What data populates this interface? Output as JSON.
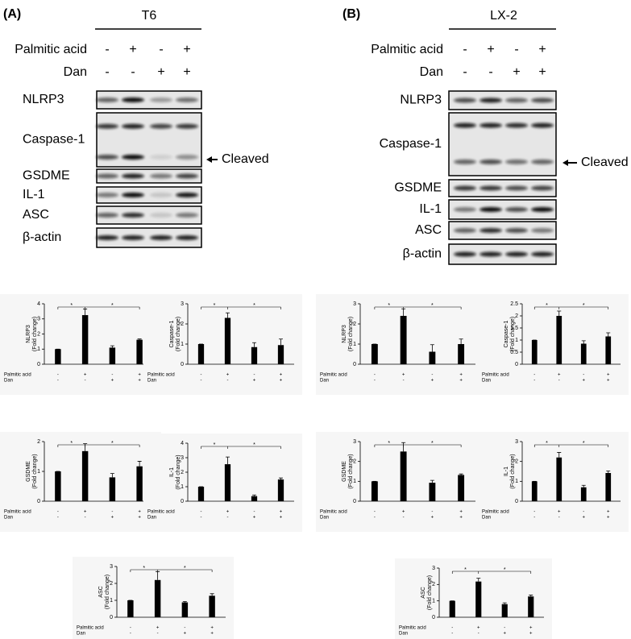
{
  "panels": [
    {
      "label": "(A)",
      "cell_line": "T6",
      "treatments": [
        {
          "name": "Palmitic acid",
          "signs": [
            "-",
            "+",
            "-",
            "+"
          ]
        },
        {
          "name": "Dan",
          "signs": [
            "-",
            "-",
            "+",
            "+"
          ]
        }
      ],
      "blots": [
        "NLRP3",
        "Caspase-1",
        "GSDME",
        "IL-1",
        "ASC",
        "β-actin"
      ],
      "arrow_label": "Cleaved"
    },
    {
      "label": "(B)",
      "cell_line": "LX-2",
      "treatments": [
        {
          "name": "Palmitic acid",
          "signs": [
            "-",
            "+",
            "-",
            "+"
          ]
        },
        {
          "name": "Dan",
          "signs": [
            "-",
            "-",
            "+",
            "+"
          ]
        }
      ],
      "blots": [
        "NLRP3",
        "Caspase-1",
        "GSDME",
        "IL-1",
        "ASC",
        "β-actin"
      ],
      "arrow_label": "Cleaved"
    }
  ],
  "chart_data": [
    {
      "type": "bar",
      "ylabel": "NLRP3",
      "ylabel_unit": "(Fold change)",
      "values": [
        1,
        3.25,
        1.1,
        1.62
      ],
      "errors": [
        0,
        0.4,
        0.12,
        0.05
      ],
      "ylim": [
        0,
        4
      ],
      "yticks": [
        0,
        1,
        2,
        3,
        4
      ],
      "color": "#000000",
      "treatments": [
        {
          "name": "Palmitic acid",
          "signs": [
            "-",
            "+",
            "-",
            "+"
          ]
        },
        {
          "name": "Dan",
          "signs": [
            "-",
            "-",
            "+",
            "+"
          ]
        }
      ],
      "significance": [
        {
          "from": 0,
          "to": 1,
          "label": "*"
        },
        {
          "from": 1,
          "to": 3,
          "label": "*"
        }
      ]
    },
    {
      "type": "bar",
      "ylabel": "Caspase-1",
      "ylabel_unit": "(Fold change)",
      "values": [
        1,
        2.3,
        0.85,
        0.95
      ],
      "errors": [
        0,
        0.25,
        0.22,
        0.3
      ],
      "ylim": [
        0,
        3
      ],
      "yticks": [
        0,
        1,
        2,
        3
      ],
      "color": "#000000",
      "treatments": [
        {
          "name": "Palmitic acid",
          "signs": [
            "-",
            "+",
            "-",
            "+"
          ]
        },
        {
          "name": "Dan",
          "signs": [
            "-",
            "-",
            "+",
            "+"
          ]
        }
      ],
      "significance": [
        {
          "from": 0,
          "to": 1,
          "label": "*"
        },
        {
          "from": 1,
          "to": 3,
          "label": "*"
        }
      ]
    },
    {
      "type": "bar",
      "ylabel": "GSDME",
      "ylabel_unit": "(Fold change)",
      "values": [
        1,
        1.68,
        0.8,
        1.17
      ],
      "errors": [
        0,
        0.25,
        0.13,
        0.17
      ],
      "ylim": [
        0,
        2
      ],
      "yticks": [
        0,
        1,
        2
      ],
      "color": "#000000",
      "treatments": [
        {
          "name": "Palmitic acid",
          "signs": [
            "-",
            "+",
            "-",
            "+"
          ]
        },
        {
          "name": "Dan",
          "signs": [
            "-",
            "-",
            "+",
            "+"
          ]
        }
      ],
      "significance": [
        {
          "from": 0,
          "to": 1,
          "label": "*"
        },
        {
          "from": 1,
          "to": 3,
          "label": "*"
        }
      ]
    },
    {
      "type": "bar",
      "ylabel": "IL-1",
      "ylabel_unit": "(Fold change)",
      "values": [
        1,
        2.55,
        0.35,
        1.5
      ],
      "errors": [
        0,
        0.5,
        0.08,
        0.1
      ],
      "ylim": [
        0,
        4
      ],
      "yticks": [
        0,
        1,
        2,
        3,
        4
      ],
      "color": "#000000",
      "treatments": [
        {
          "name": "Palmitic acid",
          "signs": [
            "-",
            "+",
            "-",
            "+"
          ]
        },
        {
          "name": "Dan",
          "signs": [
            "-",
            "-",
            "+",
            "+"
          ]
        }
      ],
      "significance": [
        {
          "from": 0,
          "to": 1,
          "label": "*"
        },
        {
          "from": 1,
          "to": 3,
          "label": "*"
        }
      ]
    },
    {
      "type": "bar",
      "ylabel": "ASC",
      "ylabel_unit": "(Fold change)",
      "values": [
        1,
        2.2,
        0.88,
        1.27
      ],
      "errors": [
        0,
        0.5,
        0.05,
        0.12
      ],
      "ylim": [
        0,
        3
      ],
      "yticks": [
        0,
        1,
        2,
        3
      ],
      "color": "#000000",
      "treatments": [
        {
          "name": "Palmitic acid",
          "signs": [
            "-",
            "+",
            "-",
            "+"
          ]
        },
        {
          "name": "Dan",
          "signs": [
            "-",
            "-",
            "+",
            "+"
          ]
        }
      ],
      "significance": [
        {
          "from": 0,
          "to": 1,
          "label": "*"
        },
        {
          "from": 1,
          "to": 3,
          "label": "*"
        }
      ]
    },
    {
      "type": "bar",
      "ylabel": "NLRP3",
      "ylabel_unit": "(Fold change)",
      "values": [
        1,
        2.4,
        0.62,
        1
      ],
      "errors": [
        0,
        0.35,
        0.35,
        0.25
      ],
      "ylim": [
        0,
        3
      ],
      "yticks": [
        0,
        1,
        2,
        3
      ],
      "color": "#000000",
      "treatments": [
        {
          "name": "Palmitic acid",
          "signs": [
            "-",
            "+",
            "-",
            "+"
          ]
        },
        {
          "name": "Dan",
          "signs": [
            "-",
            "-",
            "+",
            "+"
          ]
        }
      ],
      "significance": [
        {
          "from": 0,
          "to": 1,
          "label": "*"
        },
        {
          "from": 1,
          "to": 3,
          "label": "*"
        }
      ]
    },
    {
      "type": "bar",
      "ylabel": "Caspase-1",
      "ylabel_unit": "(Fold change)",
      "values": [
        1,
        2,
        0.85,
        1.15
      ],
      "errors": [
        0,
        0.2,
        0.12,
        0.15
      ],
      "ylim": [
        0,
        2.5
      ],
      "yticks": [
        0,
        0.5,
        1,
        1.5,
        2,
        2.5
      ],
      "color": "#000000",
      "treatments": [
        {
          "name": "Palmitic acid",
          "signs": [
            "-",
            "+",
            "-",
            "+"
          ]
        },
        {
          "name": "Dan",
          "signs": [
            "-",
            "-",
            "+",
            "+"
          ]
        }
      ],
      "significance": [
        {
          "from": 0,
          "to": 1,
          "label": "*"
        },
        {
          "from": 1,
          "to": 3,
          "label": "*"
        }
      ]
    },
    {
      "type": "bar",
      "ylabel": "GSDME",
      "ylabel_unit": "(Fold change)",
      "values": [
        1,
        2.5,
        0.93,
        1.32
      ],
      "errors": [
        0,
        0.45,
        0.12,
        0.05
      ],
      "ylim": [
        0,
        3
      ],
      "yticks": [
        0,
        1,
        2,
        3
      ],
      "color": "#000000",
      "treatments": [
        {
          "name": "Palmitic acid",
          "signs": [
            "-",
            "+",
            "-",
            "+"
          ]
        },
        {
          "name": "Dan",
          "signs": [
            "-",
            "-",
            "+",
            "+"
          ]
        }
      ],
      "significance": [
        {
          "from": 0,
          "to": 1,
          "label": "*"
        },
        {
          "from": 1,
          "to": 3,
          "label": "*"
        }
      ]
    },
    {
      "type": "bar",
      "ylabel": "IL-1",
      "ylabel_unit": "(Fold change)",
      "values": [
        1,
        2.2,
        0.7,
        1.42
      ],
      "errors": [
        0,
        0.25,
        0.1,
        0.1
      ],
      "ylim": [
        0,
        3
      ],
      "yticks": [
        0,
        1,
        2,
        3
      ],
      "color": "#000000",
      "treatments": [
        {
          "name": "Palmitic acid",
          "signs": [
            "-",
            "+",
            "-",
            "+"
          ]
        },
        {
          "name": "Dan",
          "signs": [
            "-",
            "-",
            "+",
            "+"
          ]
        }
      ],
      "significance": [
        {
          "from": 0,
          "to": 1,
          "label": "*"
        },
        {
          "from": 1,
          "to": 3,
          "label": "*"
        }
      ]
    },
    {
      "type": "bar",
      "ylabel": "ASC",
      "ylabel_unit": "(Fold change)",
      "values": [
        1,
        2.18,
        0.8,
        1.27
      ],
      "errors": [
        0,
        0.2,
        0.08,
        0.08
      ],
      "ylim": [
        0,
        3
      ],
      "yticks": [
        0,
        1,
        2,
        3
      ],
      "color": "#000000",
      "treatments": [
        {
          "name": "Palmitic acid",
          "signs": [
            "-",
            "+",
            "-",
            "+"
          ]
        },
        {
          "name": "Dan",
          "signs": [
            "-",
            "-",
            "+",
            "+"
          ]
        }
      ],
      "significance": [
        {
          "from": 0,
          "to": 1,
          "label": "*"
        },
        {
          "from": 1,
          "to": 3,
          "label": "*"
        }
      ]
    }
  ]
}
